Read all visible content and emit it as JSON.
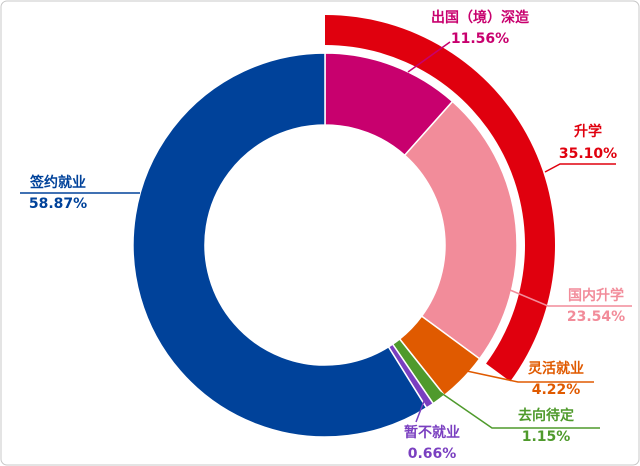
{
  "chart_data": {
    "type": "donut",
    "categories": [
      "出国（境）深造",
      "国内升学",
      "灵活就业",
      "去向待定",
      "暂不就业",
      "签约就业"
    ],
    "values": [
      11.56,
      23.54,
      4.22,
      1.15,
      0.66,
      58.87
    ],
    "value_labels": [
      "11.56%",
      "23.54%",
      "4.22%",
      "1.15%",
      "0.66%",
      "58.87%"
    ],
    "colors": [
      "#c8006e",
      "#f28c9a",
      "#e05a00",
      "#4f9a2c",
      "#7a3fc0",
      "#00429a"
    ],
    "outer_ring": {
      "name": "升学",
      "value": 35.1,
      "value_label": "35.10%",
      "color": "#e0000e"
    }
  }
}
